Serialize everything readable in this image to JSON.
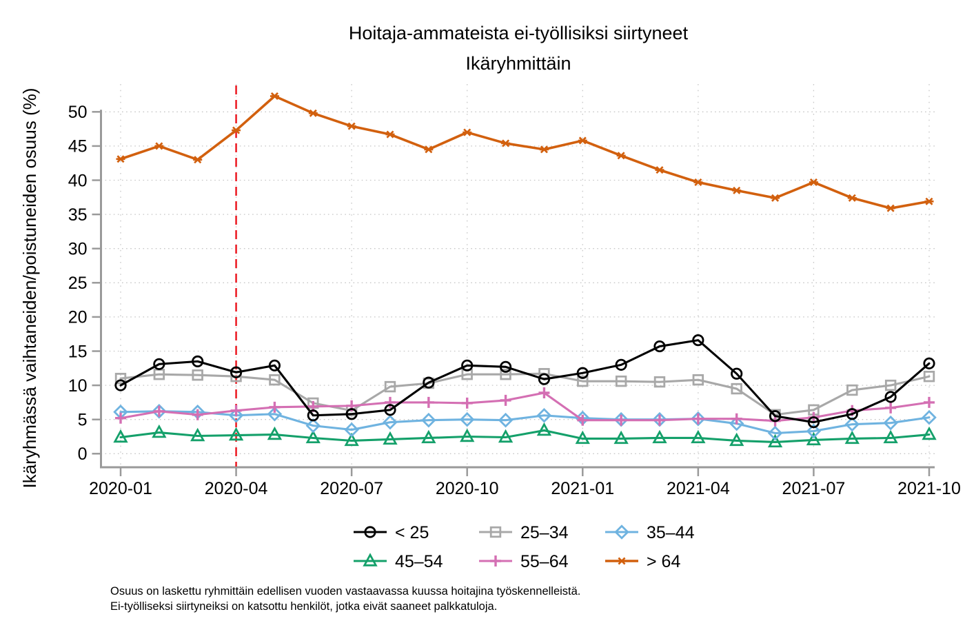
{
  "title": {
    "line1": "Hoitaja-ammateista ei-työllisiksi siirtyneet",
    "line2": "Ikäryhmittäin"
  },
  "y_axis": {
    "label": "Ikäryhmässä vaihtaneiden/poistuneiden osuus (%)",
    "ticks": [
      0,
      5,
      10,
      15,
      20,
      25,
      30,
      35,
      40,
      45,
      50
    ]
  },
  "x_axis": {
    "tick_labels": [
      "2020-01",
      "2020-04",
      "2020-07",
      "2020-10",
      "2021-01",
      "2021-04",
      "2021-07",
      "2021-10"
    ]
  },
  "footnote": {
    "line1": "Osuus on laskettu ryhmittäin edellisen vuoden vastaavassa kuussa hoitajina työskennelleistä.",
    "line2": "Ei-työlliseksi siirtyneiksi on katsottu henkilöt, jotka eivät saaneet palkkatuloja."
  },
  "colors": {
    "axis": "#9a9a9a",
    "gridline": "#c6c6c6",
    "reference_red": "#ec2028",
    "background": "#ffffff"
  },
  "chart_data": {
    "type": "line",
    "x": [
      "2020-01",
      "2020-02",
      "2020-03",
      "2020-04",
      "2020-05",
      "2020-06",
      "2020-07",
      "2020-08",
      "2020-09",
      "2020-10",
      "2020-11",
      "2020-12",
      "2021-01",
      "2021-02",
      "2021-03",
      "2021-04",
      "2021-05",
      "2021-06",
      "2021-07",
      "2021-08",
      "2021-09",
      "2021-10"
    ],
    "x_tick_labels": [
      "2020-01",
      "2020-04",
      "2020-07",
      "2020-10",
      "2021-01",
      "2021-04",
      "2021-07",
      "2021-10"
    ],
    "y_ticks": [
      0,
      5,
      10,
      15,
      20,
      25,
      30,
      35,
      40,
      45,
      50
    ],
    "ylim": [
      0,
      54
    ],
    "grid": true,
    "legend_position": "bottom",
    "series": [
      {
        "name": "< 25",
        "marker": "circle",
        "color": "#000000",
        "values": [
          10.0,
          13.1,
          13.5,
          11.9,
          12.9,
          5.6,
          5.8,
          6.4,
          10.4,
          12.9,
          12.7,
          10.9,
          11.8,
          13.0,
          15.7,
          16.6,
          11.7,
          5.5,
          4.6,
          5.8,
          8.3,
          13.2
        ]
      },
      {
        "name": "25–34",
        "marker": "square",
        "color": "#a8a8a8",
        "values": [
          11.0,
          11.6,
          11.5,
          11.3,
          10.8,
          7.4,
          6.3,
          9.8,
          10.3,
          11.6,
          11.6,
          11.7,
          10.6,
          10.6,
          10.5,
          10.8,
          9.5,
          5.7,
          6.4,
          9.3,
          10.0,
          11.3
        ]
      },
      {
        "name": "35–44",
        "marker": "diamond",
        "color": "#6fb3e0",
        "values": [
          6.1,
          6.2,
          6.1,
          5.6,
          5.8,
          4.1,
          3.5,
          4.6,
          4.9,
          5.0,
          4.9,
          5.6,
          5.2,
          5.0,
          5.0,
          5.1,
          4.4,
          3.0,
          3.3,
          4.3,
          4.5,
          5.3
        ]
      },
      {
        "name": "45–54",
        "marker": "triangle",
        "color": "#14a06a",
        "values": [
          2.4,
          3.1,
          2.6,
          2.7,
          2.8,
          2.3,
          1.9,
          2.1,
          2.3,
          2.5,
          2.4,
          3.4,
          2.2,
          2.2,
          2.3,
          2.3,
          1.9,
          1.7,
          2.0,
          2.2,
          2.3,
          2.8
        ]
      },
      {
        "name": "55–64",
        "marker": "plus",
        "color": "#d46fb3",
        "values": [
          5.2,
          6.2,
          5.7,
          6.3,
          6.8,
          6.9,
          7.0,
          7.5,
          7.5,
          7.4,
          7.8,
          8.9,
          4.9,
          4.9,
          4.9,
          5.1,
          5.1,
          4.8,
          5.3,
          6.3,
          6.7,
          7.5
        ]
      },
      {
        "name": "> 64",
        "marker": "asterisk",
        "color": "#d2600e",
        "values": [
          43.1,
          45.0,
          43.0,
          47.3,
          52.3,
          49.8,
          47.9,
          46.7,
          44.5,
          47.0,
          45.4,
          44.5,
          45.8,
          43.6,
          41.5,
          39.7,
          38.5,
          37.4,
          39.7,
          37.4,
          35.9,
          36.9
        ]
      }
    ],
    "reference_line": {
      "x": "2020-04",
      "orientation": "vertical",
      "style": "dashed",
      "color": "#ec2028"
    }
  },
  "legend": {
    "items": [
      "< 25",
      "25–34",
      "35–44",
      "45–54",
      "55–64",
      "> 64"
    ]
  }
}
